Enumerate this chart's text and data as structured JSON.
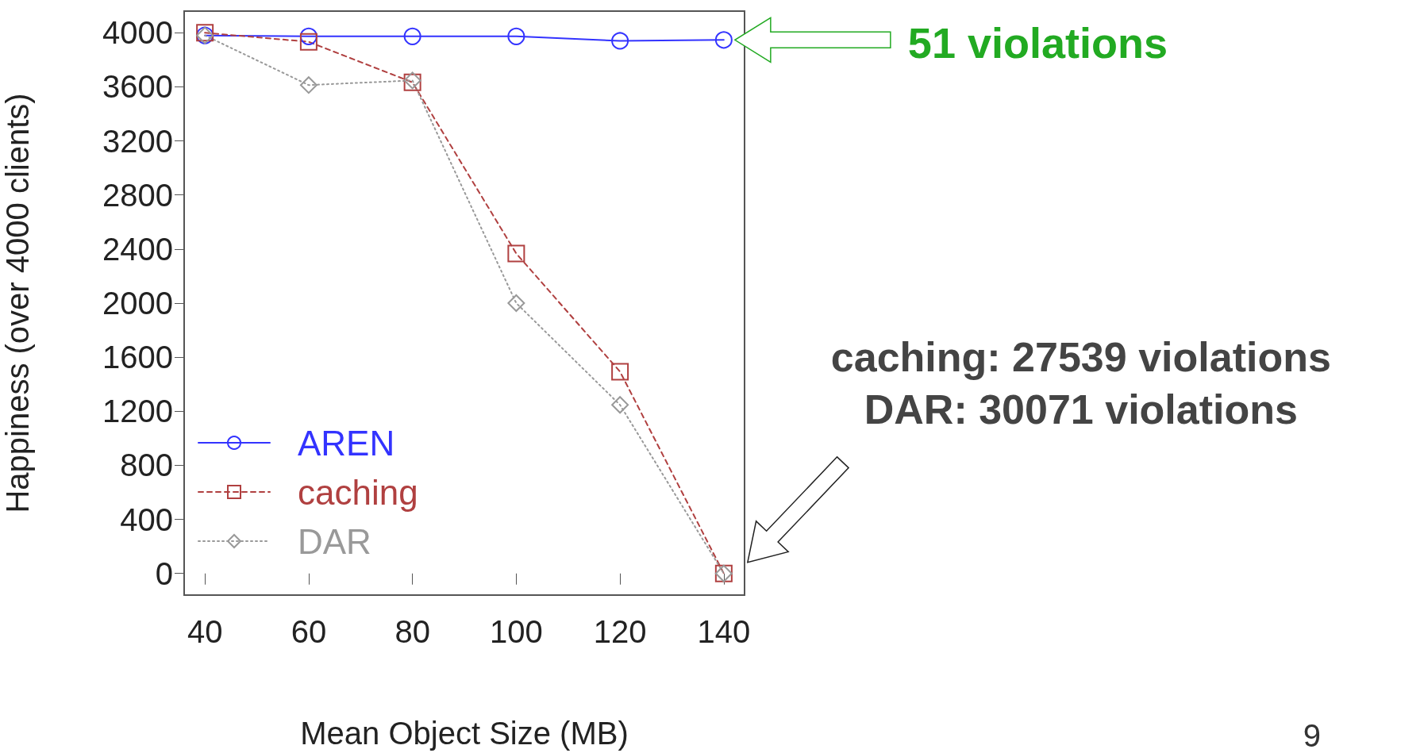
{
  "chart_data": {
    "type": "line",
    "xlabel": "Mean Object Size (MB)",
    "ylabel": "Happiness (over 4000 clients)",
    "x": [
      40,
      60,
      80,
      100,
      120,
      140
    ],
    "series": [
      {
        "name": "AREN",
        "color": "#3333ff",
        "values": [
          3980,
          3973,
          3973,
          3973,
          3940,
          3947
        ],
        "marker": "circle",
        "line_style": "solid"
      },
      {
        "name": "caching",
        "color": "#b04040",
        "values": [
          4000,
          3933,
          3633,
          2367,
          1493,
          0
        ],
        "marker": "square",
        "line_style": "dashed"
      },
      {
        "name": "DAR",
        "color": "#999999",
        "values": [
          3980,
          3613,
          3647,
          2000,
          1247,
          0
        ],
        "marker": "diamond",
        "line_style": "dotted"
      }
    ],
    "xlim": [
      36,
      144
    ],
    "xticks": [
      40,
      60,
      80,
      100,
      120,
      140
    ],
    "ylim": [
      -160,
      4160
    ],
    "yticks": [
      0,
      400,
      800,
      1200,
      1600,
      2000,
      2400,
      2800,
      3200,
      3600,
      4000
    ],
    "grid": false,
    "legend": "bottom left",
    "annotations": [
      "51 violations",
      "caching: 27539 violations\nDAR: 30071 violations",
      "9"
    ]
  }
}
